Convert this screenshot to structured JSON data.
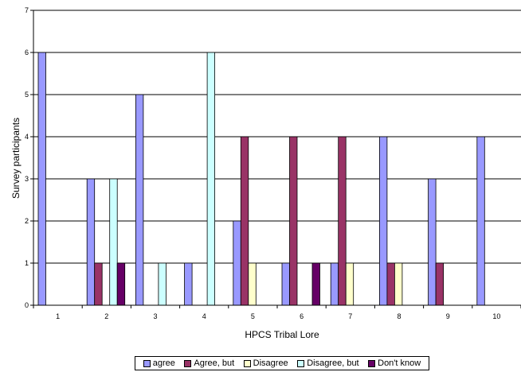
{
  "chart_data": {
    "type": "bar",
    "xlabel": "HPCS Tribal Lore",
    "ylabel": "Survey participants",
    "ylim": [
      0,
      7
    ],
    "yticks": [
      0,
      1,
      2,
      3,
      4,
      5,
      6,
      7
    ],
    "grid": "horizontal",
    "legend_position": "bottom",
    "categories": [
      "1",
      "2",
      "3",
      "4",
      "5",
      "6",
      "7",
      "8",
      "9",
      "10"
    ],
    "series": [
      {
        "name": "agree",
        "color": "#9999ff",
        "values": [
          6,
          3,
          5,
          1,
          2,
          1,
          1,
          4,
          3,
          4
        ]
      },
      {
        "name": "Agree, but",
        "color": "#993366",
        "values": [
          0,
          1,
          0,
          0,
          4,
          4,
          4,
          1,
          1,
          0
        ]
      },
      {
        "name": "Disagree",
        "color": "#ffffcc",
        "values": [
          0,
          0,
          0,
          0,
          1,
          0,
          1,
          1,
          0,
          0
        ]
      },
      {
        "name": "Disagree, but",
        "color": "#ccffff",
        "values": [
          0,
          3,
          1,
          6,
          0,
          0,
          0,
          0,
          0,
          0
        ]
      },
      {
        "name": "Don't know",
        "color": "#660066",
        "values": [
          0,
          1,
          0,
          0,
          0,
          1,
          0,
          0,
          0,
          0
        ]
      }
    ]
  }
}
